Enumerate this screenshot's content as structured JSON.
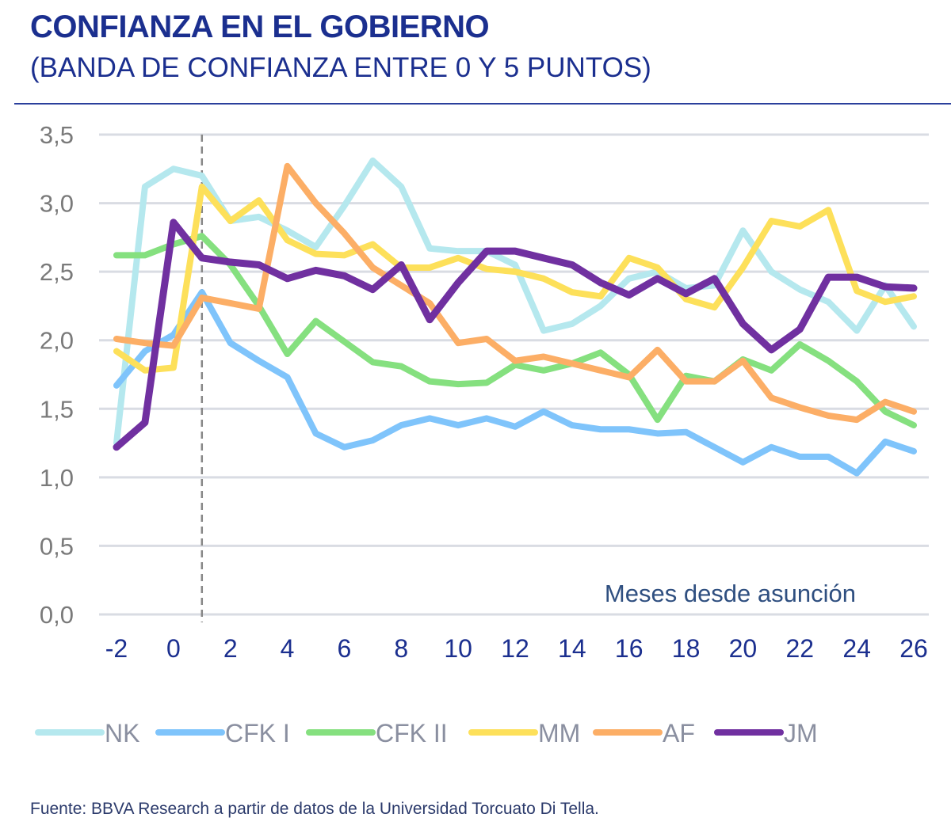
{
  "chart_data": {
    "type": "line",
    "title": "CONFIANZA EN EL GOBIERNO",
    "subtitle": "(BANDA DE CONFIANZA ENTRE 0 Y 5 PUNTOS)",
    "xlabel": "Meses desde asunción",
    "ylabel": "",
    "x": [
      -2,
      -1,
      0,
      1,
      2,
      3,
      4,
      5,
      6,
      7,
      8,
      9,
      10,
      11,
      12,
      13,
      14,
      15,
      16,
      17,
      18,
      19,
      20,
      21,
      22,
      23,
      24,
      25,
      26
    ],
    "xticks": [
      "-2",
      "0",
      "2",
      "4",
      "6",
      "8",
      "10",
      "12",
      "14",
      "16",
      "18",
      "20",
      "22",
      "24",
      "26"
    ],
    "yticks": [
      "0,0",
      "0,5",
      "1,0",
      "1,5",
      "2,0",
      "2,5",
      "3,0",
      "3,5"
    ],
    "ylim": [
      0,
      3.5
    ],
    "xlim": [
      -2,
      26
    ],
    "grid": "horizontal",
    "reference_line_x": 1,
    "legend": "bottom",
    "series": [
      {
        "name": "NK",
        "color": "#b5e8ee",
        "values": [
          1.25,
          3.12,
          3.25,
          3.2,
          2.87,
          2.9,
          2.8,
          2.68,
          2.98,
          3.31,
          3.12,
          2.67,
          2.65,
          2.65,
          2.55,
          2.07,
          2.12,
          2.25,
          2.45,
          2.5,
          2.38,
          2.4,
          2.8,
          2.5,
          2.37,
          2.28,
          2.07,
          2.4,
          2.1
        ]
      },
      {
        "name": "CFK I",
        "color": "#7fc4fb",
        "values": [
          1.67,
          1.92,
          2.04,
          2.35,
          1.98,
          1.85,
          1.73,
          1.32,
          1.22,
          1.27,
          1.38,
          1.43,
          1.38,
          1.43,
          1.37,
          1.48,
          1.38,
          1.35,
          1.35,
          1.32,
          1.33,
          1.22,
          1.11,
          1.22,
          1.15,
          1.15,
          1.03,
          1.26,
          1.19
        ]
      },
      {
        "name": "CFK II",
        "color": "#85e07f",
        "values": [
          2.62,
          2.62,
          2.7,
          2.76,
          2.55,
          2.25,
          1.9,
          2.14,
          1.99,
          1.84,
          1.81,
          1.7,
          1.68,
          1.69,
          1.82,
          1.78,
          1.83,
          1.91,
          1.75,
          1.42,
          1.74,
          1.7,
          1.86,
          1.78,
          1.97,
          1.85,
          1.7,
          1.48,
          1.38
        ]
      },
      {
        "name": "MM",
        "color": "#fde05a",
        "values": [
          1.92,
          1.78,
          1.8,
          3.12,
          2.87,
          3.02,
          2.73,
          2.63,
          2.62,
          2.7,
          2.53,
          2.53,
          2.6,
          2.52,
          2.5,
          2.45,
          2.35,
          2.32,
          2.6,
          2.53,
          2.3,
          2.24,
          2.53,
          2.87,
          2.83,
          2.95,
          2.36,
          2.28,
          2.32
        ]
      },
      {
        "name": "AF",
        "color": "#fcae66",
        "values": [
          2.01,
          1.98,
          1.96,
          2.31,
          2.27,
          2.23,
          3.27,
          3.0,
          2.78,
          2.53,
          2.4,
          2.27,
          1.98,
          2.01,
          1.85,
          1.88,
          1.83,
          1.78,
          1.73,
          1.93,
          1.7,
          1.7,
          1.85,
          1.58,
          1.51,
          1.45,
          1.42,
          1.55,
          1.48
        ]
      },
      {
        "name": "JM",
        "color": "#7030a0",
        "values": [
          1.22,
          1.4,
          2.86,
          2.6,
          2.57,
          2.55,
          2.45,
          2.51,
          2.47,
          2.37,
          2.55,
          2.15,
          2.42,
          2.65,
          2.65,
          2.6,
          2.55,
          2.42,
          2.33,
          2.45,
          2.34,
          2.45,
          2.12,
          1.93,
          2.08,
          2.46,
          2.46,
          2.39,
          2.38
        ]
      }
    ],
    "source": "Fuente: BBVA Research a partir de datos de la Universidad Torcuato Di Tella."
  }
}
